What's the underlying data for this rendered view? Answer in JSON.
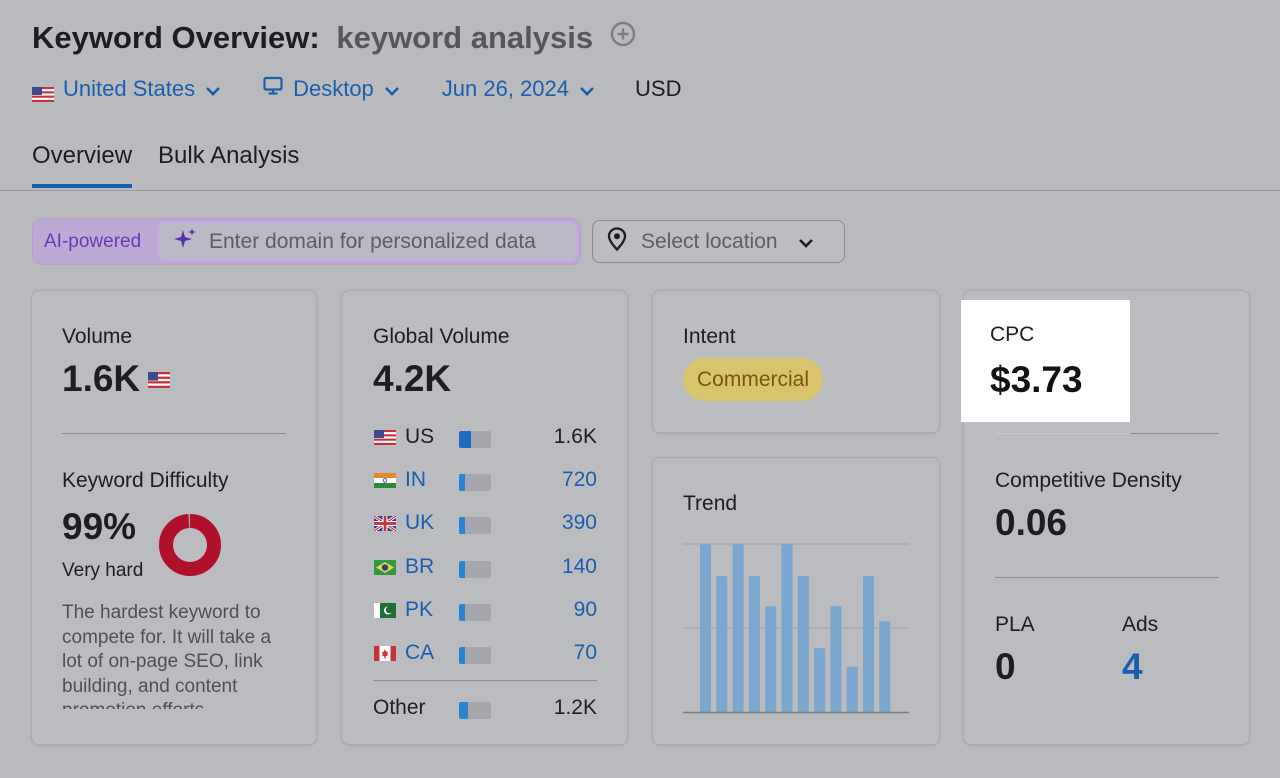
{
  "header": {
    "title": "Keyword Overview:",
    "keyword": "keyword analysis",
    "filters": {
      "country": "United States",
      "device": "Desktop",
      "date": "Jun 26, 2024",
      "currency": "USD"
    },
    "tabs": [
      {
        "label": "Overview",
        "active": true
      },
      {
        "label": "Bulk Analysis",
        "active": false
      }
    ]
  },
  "ai": {
    "label": "AI-powered",
    "domain_placeholder": "Enter domain for personalized data",
    "location_placeholder": "Select location"
  },
  "volume": {
    "label": "Volume",
    "value": "1.6K"
  },
  "difficulty": {
    "label": "Keyword Difficulty",
    "percent": 99,
    "value": "99%",
    "level": "Very hard",
    "description": "The hardest keyword to compete for. It will take a lot of on-page SEO, link building, and content promotion efforts."
  },
  "global_volume": {
    "label": "Global Volume",
    "value": "4.2K",
    "countries": [
      {
        "code": "US",
        "value": "1.6K",
        "share": 0.38
      },
      {
        "code": "IN",
        "value": "720",
        "share": 0.17
      },
      {
        "code": "UK",
        "value": "390",
        "share": 0.09
      },
      {
        "code": "BR",
        "value": "140",
        "share": 0.05
      },
      {
        "code": "PK",
        "value": "90",
        "share": 0.04
      },
      {
        "code": "CA",
        "value": "70",
        "share": 0.03
      }
    ],
    "other": {
      "label": "Other",
      "value": "1.2K",
      "share": 0.29
    }
  },
  "intent": {
    "label": "Intent",
    "value": "Commercial"
  },
  "trend": {
    "label": "Trend",
    "values": [
      1.0,
      0.81,
      1.0,
      0.81,
      0.63,
      1.0,
      0.81,
      0.38,
      0.63,
      0.27,
      0.81,
      0.54
    ]
  },
  "cpc": {
    "label": "CPC",
    "value": "$3.73"
  },
  "competitive_density": {
    "label": "Competitive Density",
    "value": "0.06"
  },
  "pla": {
    "label": "PLA",
    "value": "0"
  },
  "ads": {
    "label": "Ads",
    "value": "4"
  },
  "colors": {
    "link": "#1a5fae",
    "kd_ring": "#b0102b",
    "intent_badge": "#d8c46a",
    "trend_bar": "#7aa7cf"
  }
}
